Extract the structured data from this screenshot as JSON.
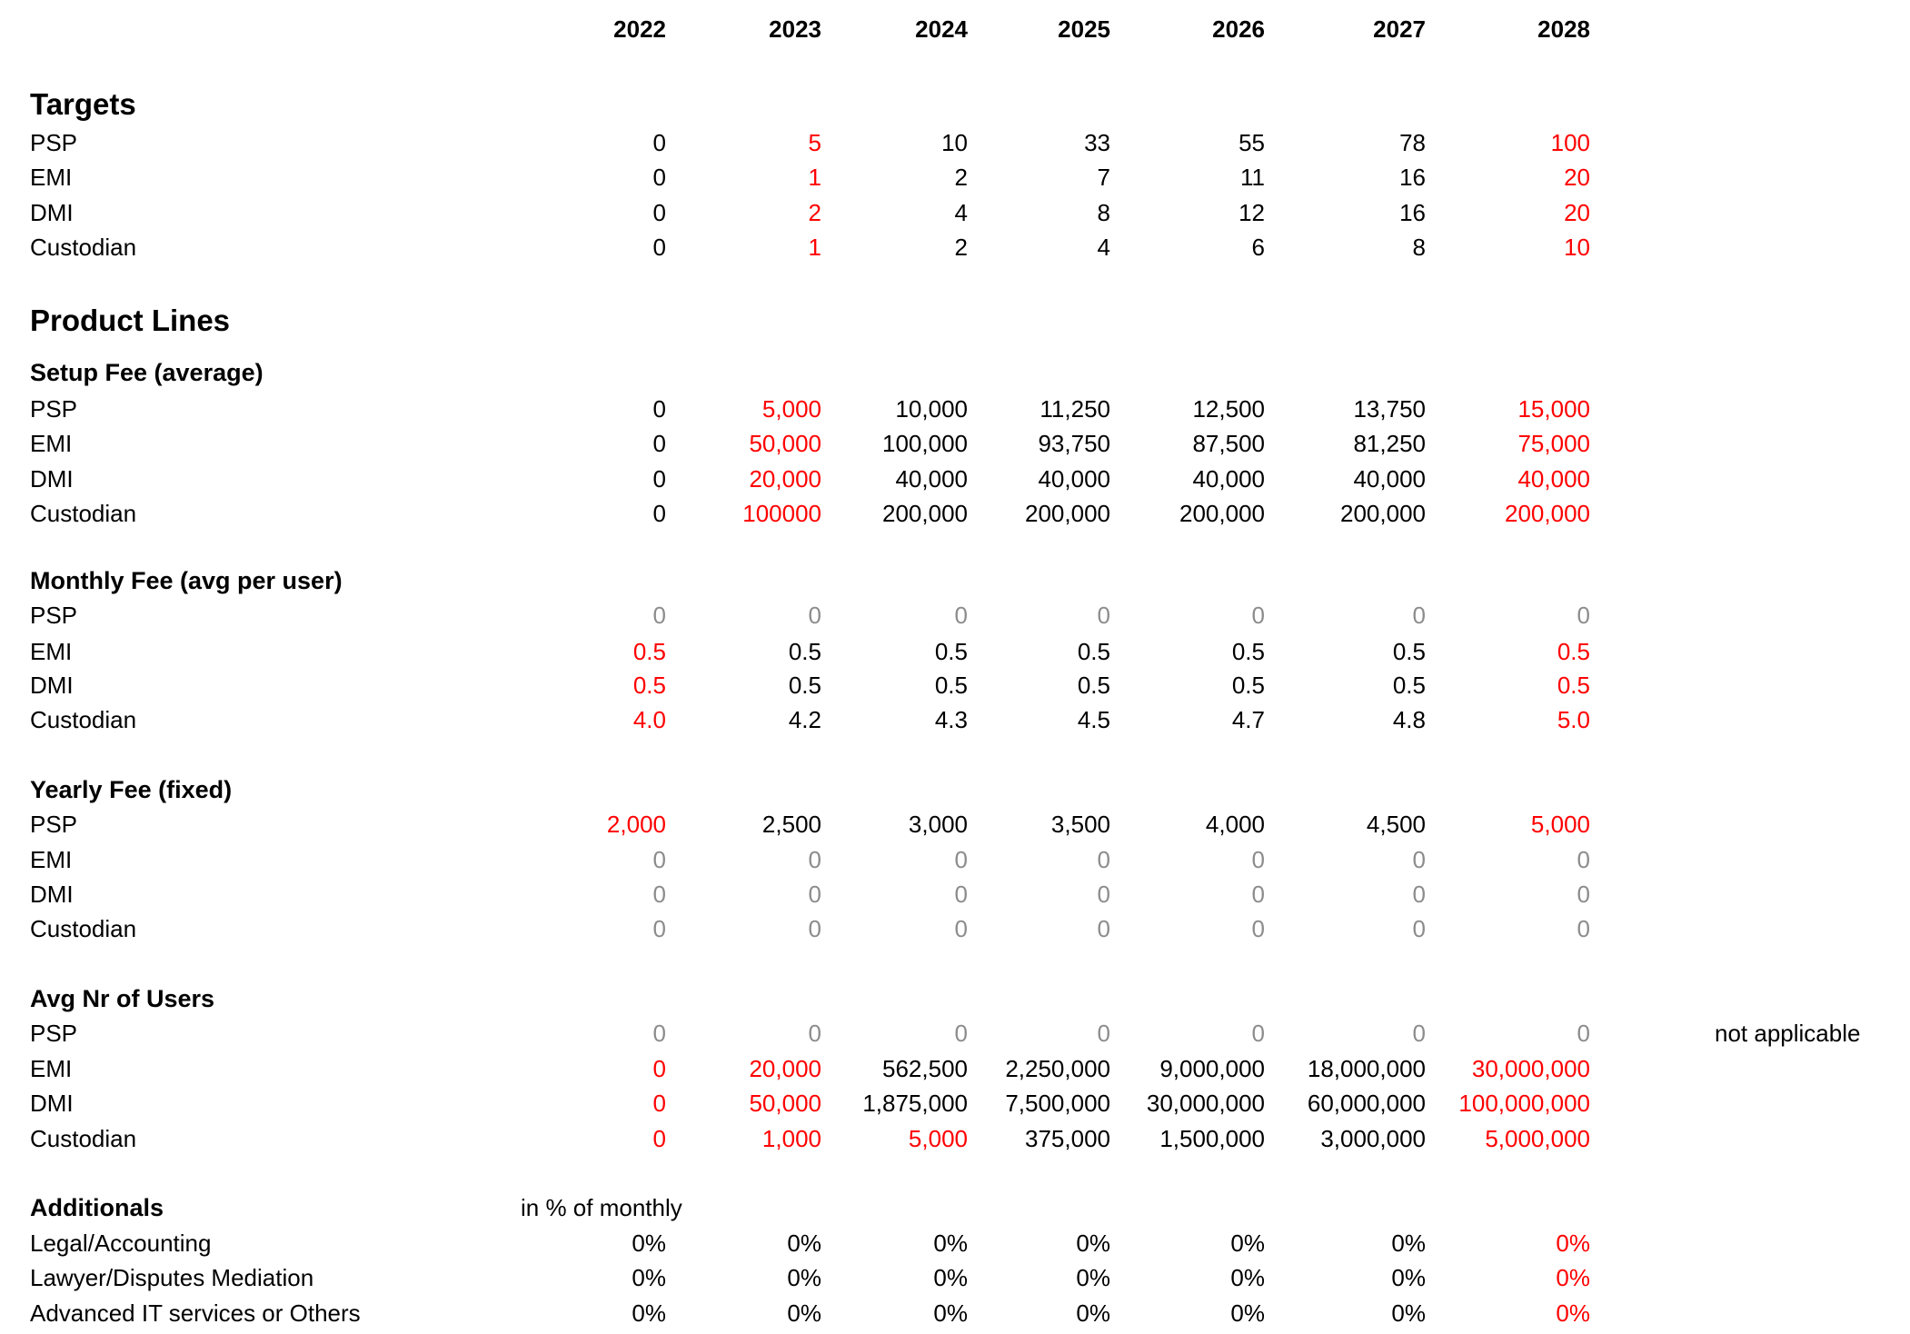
{
  "years": [
    "2022",
    "2023",
    "2024",
    "2025",
    "2026",
    "2027",
    "2028"
  ],
  "colors": {
    "red": "#ff0000",
    "gray": "#8c8c8c",
    "black": "#000000"
  },
  "sections": [
    {
      "title": "Targets",
      "rows": [
        {
          "label": "PSP",
          "values": [
            "0",
            "5",
            "10",
            "33",
            "55",
            "78",
            "100"
          ],
          "styles": [
            "k",
            "r",
            "k",
            "k",
            "k",
            "k",
            "r"
          ]
        },
        {
          "label": "EMI",
          "values": [
            "0",
            "1",
            "2",
            "7",
            "11",
            "16",
            "20"
          ],
          "styles": [
            "k",
            "r",
            "k",
            "k",
            "k",
            "k",
            "r"
          ]
        },
        {
          "label": "DMI",
          "values": [
            "0",
            "2",
            "4",
            "8",
            "12",
            "16",
            "20"
          ],
          "styles": [
            "k",
            "r",
            "k",
            "k",
            "k",
            "k",
            "r"
          ]
        },
        {
          "label": "Custodian",
          "values": [
            "0",
            "1",
            "2",
            "4",
            "6",
            "8",
            "10"
          ],
          "styles": [
            "k",
            "r",
            "k",
            "k",
            "k",
            "k",
            "r"
          ]
        }
      ]
    },
    {
      "title": "Product Lines",
      "rows": []
    },
    {
      "subtitle": "Setup Fee (average)",
      "rows": [
        {
          "label": "PSP",
          "values": [
            "0",
            "5,000",
            "10,000",
            "11,250",
            "12,500",
            "13,750",
            "15,000"
          ],
          "styles": [
            "k",
            "r",
            "k",
            "k",
            "k",
            "k",
            "r"
          ]
        },
        {
          "label": "EMI",
          "values": [
            "0",
            "50,000",
            "100,000",
            "93,750",
            "87,500",
            "81,250",
            "75,000"
          ],
          "styles": [
            "k",
            "r",
            "k",
            "k",
            "k",
            "k",
            "r"
          ]
        },
        {
          "label": "DMI",
          "values": [
            "0",
            "20,000",
            "40,000",
            "40,000",
            "40,000",
            "40,000",
            "40,000"
          ],
          "styles": [
            "k",
            "r",
            "k",
            "k",
            "k",
            "k",
            "r"
          ]
        },
        {
          "label": "Custodian",
          "values": [
            "0",
            "100000",
            "200,000",
            "200,000",
            "200,000",
            "200,000",
            "200,000"
          ],
          "styles": [
            "k",
            "r",
            "k",
            "k",
            "k",
            "k",
            "r"
          ]
        }
      ]
    },
    {
      "subtitle": "Monthly Fee  (avg per user)",
      "rows": [
        {
          "label": "PSP",
          "values": [
            "0",
            "0",
            "0",
            "0",
            "0",
            "0",
            "0"
          ],
          "styles": [
            "g",
            "g",
            "g",
            "g",
            "g",
            "g",
            "g"
          ]
        },
        {
          "label": "EMI",
          "values": [
            "0.5",
            "0.5",
            "0.5",
            "0.5",
            "0.5",
            "0.5",
            "0.5"
          ],
          "styles": [
            "r",
            "k",
            "k",
            "k",
            "k",
            "k",
            "r"
          ]
        },
        {
          "label": "DMI",
          "values": [
            "0.5",
            "0.5",
            "0.5",
            "0.5",
            "0.5",
            "0.5",
            "0.5"
          ],
          "styles": [
            "r",
            "k",
            "k",
            "k",
            "k",
            "k",
            "r"
          ]
        },
        {
          "label": "Custodian",
          "values": [
            "4.0",
            "4.2",
            "4.3",
            "4.5",
            "4.7",
            "4.8",
            "5.0"
          ],
          "styles": [
            "r",
            "k",
            "k",
            "k",
            "k",
            "k",
            "r"
          ]
        }
      ]
    },
    {
      "subtitle": "Yearly Fee (fixed)",
      "rows": [
        {
          "label": "PSP",
          "values": [
            "2,000",
            "2,500",
            "3,000",
            "3,500",
            "4,000",
            "4,500",
            "5,000"
          ],
          "styles": [
            "r",
            "k",
            "k",
            "k",
            "k",
            "k",
            "r"
          ]
        },
        {
          "label": "EMI",
          "values": [
            "0",
            "0",
            "0",
            "0",
            "0",
            "0",
            "0"
          ],
          "styles": [
            "g",
            "g",
            "g",
            "g",
            "g",
            "g",
            "g"
          ]
        },
        {
          "label": "DMI",
          "values": [
            "0",
            "0",
            "0",
            "0",
            "0",
            "0",
            "0"
          ],
          "styles": [
            "g",
            "g",
            "g",
            "g",
            "g",
            "g",
            "g"
          ]
        },
        {
          "label": "Custodian",
          "values": [
            "0",
            "0",
            "0",
            "0",
            "0",
            "0",
            "0"
          ],
          "styles": [
            "g",
            "g",
            "g",
            "g",
            "g",
            "g",
            "g"
          ]
        }
      ]
    },
    {
      "subtitle": "Avg Nr of Users",
      "rows": [
        {
          "label": "PSP",
          "values": [
            "0",
            "0",
            "0",
            "0",
            "0",
            "0",
            "0"
          ],
          "styles": [
            "g",
            "g",
            "g",
            "g",
            "g",
            "g",
            "g"
          ],
          "note": "not applicable"
        },
        {
          "label": "EMI",
          "values": [
            "0",
            "20,000",
            "562,500",
            "2,250,000",
            "9,000,000",
            "18,000,000",
            "30,000,000"
          ],
          "styles": [
            "r",
            "r",
            "k",
            "k",
            "k",
            "k",
            "r"
          ]
        },
        {
          "label": "DMI",
          "values": [
            "0",
            "50,000",
            "1,875,000",
            "7,500,000",
            "30,000,000",
            "60,000,000",
            "100,000,000"
          ],
          "styles": [
            "r",
            "r",
            "k",
            "k",
            "k",
            "k",
            "r"
          ]
        },
        {
          "label": "Custodian",
          "values": [
            "0",
            "1,000",
            "5,000",
            "375,000",
            "1,500,000",
            "3,000,000",
            "5,000,000"
          ],
          "styles": [
            "r",
            "r",
            "r",
            "k",
            "k",
            "k",
            "r"
          ]
        }
      ]
    },
    {
      "subtitle": "Additionals",
      "subtitle_note": "in % of monthly",
      "rows": [
        {
          "label": "Legal/Accounting",
          "values": [
            "0%",
            "0%",
            "0%",
            "0%",
            "0%",
            "0%",
            "0%"
          ],
          "styles": [
            "k",
            "k",
            "k",
            "k",
            "k",
            "k",
            "r"
          ]
        },
        {
          "label": "Lawyer/Disputes Mediation",
          "values": [
            "0%",
            "0%",
            "0%",
            "0%",
            "0%",
            "0%",
            "0%"
          ],
          "styles": [
            "k",
            "k",
            "k",
            "k",
            "k",
            "k",
            "r"
          ]
        },
        {
          "label": "Advanced IT services or Others",
          "values": [
            "0%",
            "0%",
            "0%",
            "0%",
            "0%",
            "0%",
            "0%"
          ],
          "styles": [
            "k",
            "k",
            "k",
            "k",
            "k",
            "k",
            "r"
          ]
        }
      ]
    }
  ]
}
